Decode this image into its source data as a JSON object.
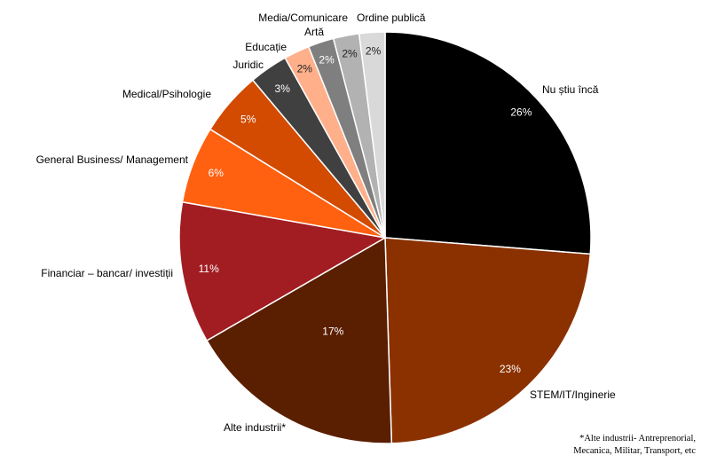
{
  "chart_data": {
    "type": "pie",
    "title": "",
    "slices": [
      {
        "label": "Nu știu încă",
        "value": 26,
        "display": "26%",
        "color": "#000000"
      },
      {
        "label": "STEM/IT/Inginerie",
        "value": 23,
        "display": "23%",
        "color": "#8B3100"
      },
      {
        "label": "Alte industrii*",
        "value": 17,
        "display": "17%",
        "color": "#5A1E00"
      },
      {
        "label": "Financiar – bancar/ investiții",
        "value": 11,
        "display": "11%",
        "color": "#A11D22"
      },
      {
        "label": "General Business/ Management",
        "value": 6,
        "display": "6%",
        "color": "#FF6111"
      },
      {
        "label": "Medical/Psihologie",
        "value": 5,
        "display": "5%",
        "color": "#D24B00"
      },
      {
        "label": "Juridic",
        "value": 3,
        "display": "3%",
        "color": "#404040"
      },
      {
        "label": "Educație",
        "value": 2,
        "display": "2%",
        "color": "#FFB08A"
      },
      {
        "label": "Artă",
        "value": 2,
        "display": "2%",
        "color": "#7F7F7F"
      },
      {
        "label": "Media/Comunicare",
        "value": 2,
        "display": "2%",
        "color": "#B2B2B2"
      },
      {
        "label": "Ordine publică",
        "value": 2,
        "display": "2%",
        "color": "#D9D9D9"
      }
    ]
  },
  "footnote": {
    "line1": "*Alte industrii- Antreprenorial,",
    "line2": "Mecanica, Militar, Transport, etc"
  }
}
